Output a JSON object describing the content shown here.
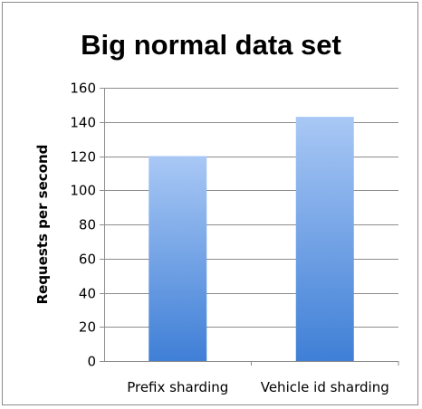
{
  "chart_data": {
    "type": "bar",
    "title": "Big normal data set",
    "xlabel": "",
    "ylabel": "Requests per second",
    "categories": [
      "Prefix sharding",
      "Vehicle id sharding"
    ],
    "values": [
      120,
      143
    ],
    "ylim": [
      0,
      160
    ],
    "yticks": [
      0,
      20,
      40,
      60,
      80,
      100,
      120,
      140,
      160
    ],
    "grid": true,
    "legend": "none",
    "bar_color_top": "#a9c8f5",
    "bar_color_bottom": "#3f7fd6",
    "grid_color": "#8c8c8c"
  }
}
